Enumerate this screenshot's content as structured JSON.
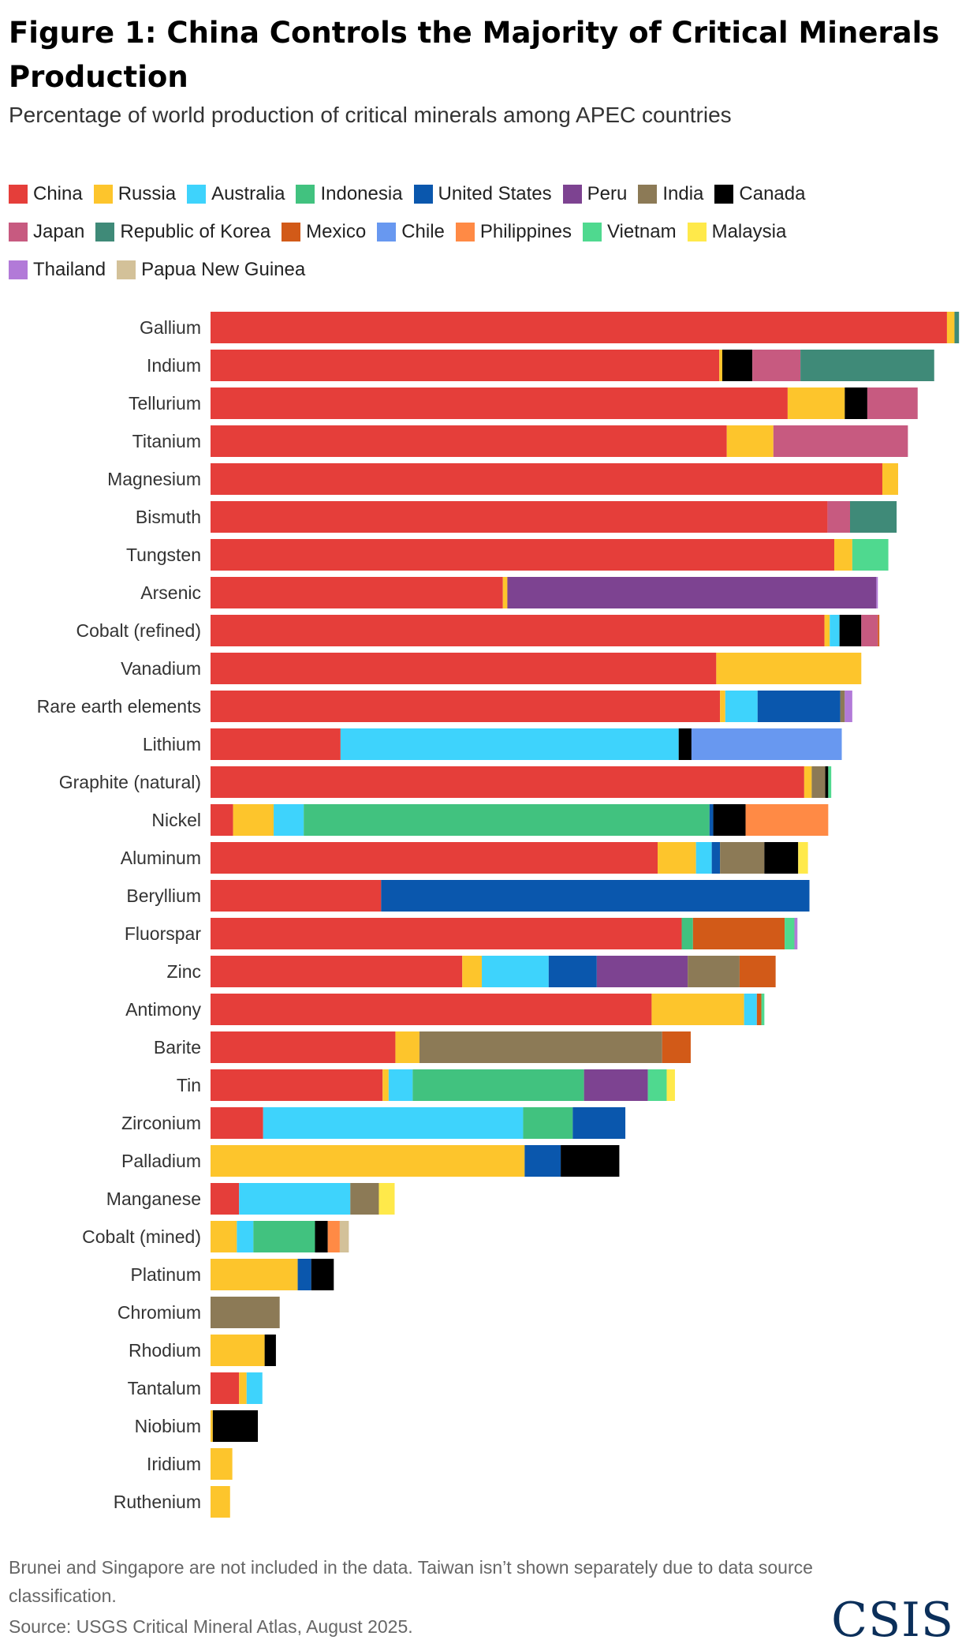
{
  "figure": {
    "title": "Figure 1: China Controls the Majority of Critical Minerals Production",
    "subtitle": "Percentage of world production of critical minerals among APEC countries",
    "note": "Brunei and Singapore are not included in the data. Taiwan isn’t shown separately due to data source classification.",
    "source": "Source: USGS Critical Mineral Atlas, August 2025.",
    "logo_text": "CSIS"
  },
  "legend": [
    {
      "name": "China",
      "color": "#e53e3a"
    },
    {
      "name": "Russia",
      "color": "#fdc52c"
    },
    {
      "name": "Australia",
      "color": "#3ed3fc"
    },
    {
      "name": "Indonesia",
      "color": "#41c27f"
    },
    {
      "name": "United States",
      "color": "#0a57ad"
    },
    {
      "name": "Peru",
      "color": "#7d4391"
    },
    {
      "name": "India",
      "color": "#8c7a56"
    },
    {
      "name": "Canada",
      "color": "#000000"
    },
    {
      "name": "Japan",
      "color": "#c75a80"
    },
    {
      "name": "Republic of Korea",
      "color": "#3f8a78"
    },
    {
      "name": "Mexico",
      "color": "#d25a18"
    },
    {
      "name": "Chile",
      "color": "#6898f0"
    },
    {
      "name": "Philippines",
      "color": "#ff8a45"
    },
    {
      "name": "Vietnam",
      "color": "#4fd98f"
    },
    {
      "name": "Malaysia",
      "color": "#ffe94a"
    },
    {
      "name": "Thailand",
      "color": "#b27ad8"
    },
    {
      "name": "Papua New Guinea",
      "color": "#d3c199"
    }
  ],
  "chart_data": {
    "type": "bar",
    "orientation": "horizontal",
    "stacked": true,
    "unit": "% of world production",
    "xlim": [
      0,
      100
    ],
    "categories": [
      "Gallium",
      "Indium",
      "Tellurium",
      "Titanium",
      "Magnesium",
      "Bismuth",
      "Tungsten",
      "Arsenic",
      "Cobalt (refined)",
      "Vanadium",
      "Rare earth elements",
      "Lithium",
      "Graphite (natural)",
      "Nickel",
      "Aluminum",
      "Beryllium",
      "Fluorspar",
      "Zinc",
      "Antimony",
      "Barite",
      "Tin",
      "Zirconium",
      "Palladium",
      "Manganese",
      "Cobalt (mined)",
      "Platinum",
      "Chromium",
      "Rhodium",
      "Tantalum",
      "Niobium",
      "Iridium",
      "Ruthenium"
    ],
    "series": [
      {
        "name": "China",
        "values": [
          98.0,
          67.7,
          76.8,
          68.7,
          89.4,
          82.1,
          83.0,
          38.9,
          81.7,
          67.3,
          67.8,
          17.3,
          79.0,
          3.0,
          59.5,
          22.7,
          62.7,
          33.5,
          58.7,
          24.6,
          22.9,
          7.0,
          0,
          3.8,
          0,
          0,
          0,
          0,
          3.8,
          0,
          0,
          0
        ]
      },
      {
        "name": "Russia",
        "values": [
          1.0,
          0.4,
          7.6,
          6.2,
          2.1,
          0,
          2.4,
          0.6,
          0.7,
          19.3,
          0.7,
          0,
          1.0,
          5.4,
          5.1,
          0,
          0,
          2.6,
          12.3,
          3.2,
          0.8,
          0,
          41.8,
          0,
          3.5,
          11.6,
          0,
          7.2,
          1.0,
          0.3,
          2.9,
          2.6
        ]
      },
      {
        "name": "Australia",
        "values": [
          0,
          0,
          0,
          0,
          0,
          0,
          0,
          0,
          1.3,
          0,
          4.3,
          45.0,
          0,
          4.0,
          2.1,
          0,
          0,
          8.9,
          1.7,
          0,
          3.2,
          34.6,
          0,
          14.8,
          2.2,
          0,
          0,
          0,
          2.1,
          0,
          0,
          0
        ]
      },
      {
        "name": "Indonesia",
        "values": [
          0,
          0,
          0,
          0,
          0,
          0,
          0,
          0,
          0,
          0,
          0,
          0,
          0,
          54.0,
          0,
          0,
          1.5,
          0,
          0,
          0,
          22.8,
          6.6,
          0,
          0,
          8.2,
          0,
          0,
          0,
          0,
          0,
          0,
          0
        ]
      },
      {
        "name": "United States",
        "values": [
          0,
          0,
          0,
          0,
          0,
          0,
          0,
          0,
          0,
          0,
          11.0,
          0,
          0,
          0.5,
          1.1,
          57.0,
          0,
          6.4,
          0,
          0,
          0,
          7.0,
          4.8,
          0,
          0,
          1.8,
          0,
          0,
          0,
          0,
          0,
          0
        ]
      },
      {
        "name": "Peru",
        "values": [
          0,
          0,
          0,
          0,
          0,
          0,
          0,
          49.1,
          0,
          0,
          0,
          0,
          0,
          0,
          0,
          0,
          0,
          12.1,
          0,
          0,
          8.5,
          0,
          0,
          0,
          0,
          0,
          0,
          0,
          0,
          0,
          0,
          0
        ]
      },
      {
        "name": "India",
        "values": [
          0,
          0,
          0,
          0,
          0,
          0,
          0,
          0,
          0,
          0,
          0.6,
          0,
          1.8,
          0,
          5.9,
          0,
          0,
          6.9,
          0,
          32.3,
          0,
          0,
          0,
          3.8,
          0,
          0,
          9.2,
          0,
          0,
          0,
          0,
          0
        ]
      },
      {
        "name": "Canada",
        "values": [
          0,
          4.0,
          3.0,
          0,
          0,
          0,
          0,
          0,
          2.9,
          0,
          0,
          1.7,
          0.4,
          4.3,
          4.5,
          0,
          0,
          0,
          0,
          0,
          0,
          0,
          7.8,
          0,
          1.7,
          3.0,
          0,
          1.5,
          0,
          6.0,
          0,
          0
        ]
      },
      {
        "name": "Japan",
        "values": [
          0,
          6.4,
          6.7,
          17.9,
          0,
          3.0,
          0,
          0,
          2.2,
          0,
          0,
          0,
          0,
          0,
          0,
          0,
          0,
          0,
          0,
          0,
          0,
          0,
          0,
          0,
          0,
          0,
          0,
          0,
          0,
          0,
          0,
          0
        ]
      },
      {
        "name": "Republic of Korea",
        "values": [
          0.6,
          17.8,
          0,
          0,
          0,
          6.2,
          0,
          0,
          0,
          0,
          0,
          0,
          0,
          0,
          0,
          0,
          0,
          0,
          0,
          0,
          0,
          0,
          0,
          0,
          0,
          0,
          0,
          0,
          0,
          0,
          0,
          0
        ]
      },
      {
        "name": "Mexico",
        "values": [
          0,
          0,
          0,
          0,
          0,
          0,
          0,
          0,
          0.2,
          0,
          0,
          0,
          0,
          0,
          0,
          0,
          12.2,
          4.8,
          0.6,
          3.8,
          0,
          0,
          0,
          0,
          0,
          0,
          0,
          0,
          0,
          0,
          0,
          0
        ]
      },
      {
        "name": "Chile",
        "values": [
          0,
          0,
          0,
          0,
          0,
          0,
          0,
          0,
          0,
          0,
          0,
          20.0,
          0,
          0,
          0,
          0,
          0,
          0,
          0,
          0,
          0,
          0,
          0,
          0,
          0,
          0,
          0,
          0,
          0,
          0,
          0,
          0
        ]
      },
      {
        "name": "Philippines",
        "values": [
          0,
          0,
          0,
          0,
          0,
          0,
          0,
          0,
          0,
          0,
          0,
          0,
          0,
          11.0,
          0,
          0,
          0,
          0,
          0,
          0,
          0,
          0,
          0,
          0,
          1.6,
          0,
          0,
          0,
          0,
          0,
          0,
          0
        ]
      },
      {
        "name": "Vietnam",
        "values": [
          0,
          0,
          0,
          0,
          0,
          0,
          4.8,
          0,
          0,
          0,
          0,
          0,
          0.4,
          0,
          0,
          0,
          1.3,
          0,
          0.4,
          0,
          2.5,
          0,
          0,
          0,
          0,
          0,
          0,
          0,
          0,
          0,
          0,
          0
        ]
      },
      {
        "name": "Malaysia",
        "values": [
          0,
          0,
          0,
          0,
          0,
          0,
          0,
          0,
          0,
          0,
          0,
          0,
          0,
          0,
          1.3,
          0,
          0,
          0,
          0,
          0,
          1.1,
          0,
          0,
          2.1,
          0,
          0,
          0,
          0,
          0,
          0,
          0,
          0
        ]
      },
      {
        "name": "Thailand",
        "values": [
          0,
          0,
          0,
          0,
          0,
          0,
          0,
          0.2,
          0,
          0,
          1.0,
          0,
          0,
          0,
          0,
          0,
          0.4,
          0,
          0,
          0,
          0,
          0,
          0,
          0,
          0,
          0,
          0,
          0,
          0,
          0,
          0,
          0
        ]
      },
      {
        "name": "Papua New Guinea",
        "values": [
          0,
          0,
          0,
          0,
          0,
          0,
          0,
          0,
          0,
          0,
          0,
          0,
          0,
          0,
          0,
          0,
          0,
          0,
          0,
          0,
          0,
          0,
          0,
          0,
          1.2,
          0,
          0,
          0,
          0,
          0,
          0,
          0
        ]
      }
    ]
  }
}
